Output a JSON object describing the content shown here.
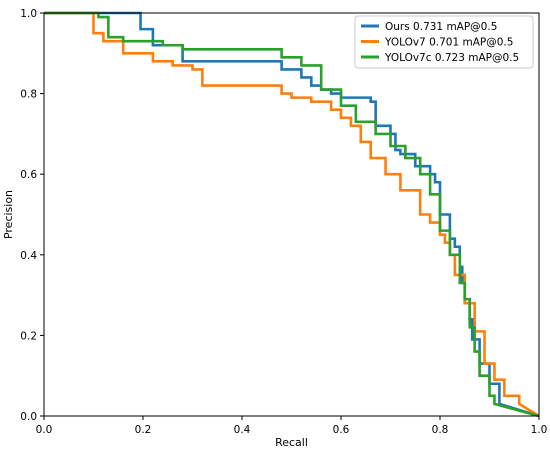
{
  "chart_data": {
    "type": "line",
    "xlabel": "Recall",
    "ylabel": "Precision",
    "xlim": [
      0.0,
      1.0
    ],
    "ylim": [
      0.0,
      1.0
    ],
    "xticks": [
      "0.0",
      "0.2",
      "0.4",
      "0.6",
      "0.8",
      "1.0"
    ],
    "yticks": [
      "0.0",
      "0.2",
      "0.4",
      "0.6",
      "0.8",
      "1.0"
    ],
    "grid": false,
    "legend_position": "top-right",
    "series": [
      {
        "name": "Ours 0.731 mAP@0.5",
        "color": "#1f77b4",
        "x": [
          0.0,
          0.195,
          0.195,
          0.22,
          0.22,
          0.28,
          0.28,
          0.48,
          0.48,
          0.52,
          0.52,
          0.54,
          0.54,
          0.56,
          0.56,
          0.58,
          0.58,
          0.6,
          0.6,
          0.66,
          0.66,
          0.67,
          0.67,
          0.7,
          0.7,
          0.71,
          0.71,
          0.72,
          0.72,
          0.75,
          0.75,
          0.78,
          0.78,
          0.79,
          0.79,
          0.8,
          0.8,
          0.82,
          0.82,
          0.83,
          0.83,
          0.84,
          0.84,
          0.845,
          0.845,
          0.85,
          0.85,
          0.86,
          0.86,
          0.865,
          0.865,
          0.88,
          0.88,
          0.9,
          0.9,
          0.92,
          0.92,
          1.0
        ],
        "y": [
          1.0,
          1.0,
          0.96,
          0.96,
          0.92,
          0.92,
          0.88,
          0.88,
          0.86,
          0.86,
          0.84,
          0.84,
          0.82,
          0.82,
          0.81,
          0.81,
          0.8,
          0.8,
          0.79,
          0.79,
          0.78,
          0.78,
          0.72,
          0.72,
          0.7,
          0.7,
          0.66,
          0.66,
          0.65,
          0.65,
          0.62,
          0.62,
          0.6,
          0.6,
          0.58,
          0.58,
          0.5,
          0.5,
          0.44,
          0.44,
          0.42,
          0.42,
          0.37,
          0.37,
          0.33,
          0.33,
          0.28,
          0.28,
          0.24,
          0.24,
          0.19,
          0.19,
          0.13,
          0.13,
          0.08,
          0.08,
          0.03,
          0.0
        ]
      },
      {
        "name": "YOLOv7 0.701 mAP@0.5",
        "color": "#ff7f0e",
        "x": [
          0.0,
          0.1,
          0.1,
          0.12,
          0.12,
          0.16,
          0.16,
          0.22,
          0.22,
          0.26,
          0.26,
          0.3,
          0.3,
          0.32,
          0.32,
          0.48,
          0.48,
          0.5,
          0.5,
          0.54,
          0.54,
          0.58,
          0.58,
          0.6,
          0.6,
          0.62,
          0.62,
          0.64,
          0.64,
          0.66,
          0.66,
          0.69,
          0.69,
          0.72,
          0.72,
          0.76,
          0.76,
          0.78,
          0.78,
          0.8,
          0.8,
          0.81,
          0.81,
          0.82,
          0.82,
          0.83,
          0.83,
          0.85,
          0.85,
          0.87,
          0.87,
          0.89,
          0.89,
          0.91,
          0.91,
          0.93,
          0.93,
          0.96,
          0.96,
          1.0
        ],
        "y": [
          1.0,
          1.0,
          0.95,
          0.95,
          0.93,
          0.93,
          0.9,
          0.9,
          0.88,
          0.88,
          0.87,
          0.87,
          0.86,
          0.86,
          0.82,
          0.82,
          0.8,
          0.8,
          0.79,
          0.79,
          0.78,
          0.78,
          0.76,
          0.76,
          0.74,
          0.74,
          0.72,
          0.72,
          0.68,
          0.68,
          0.64,
          0.64,
          0.6,
          0.6,
          0.56,
          0.56,
          0.5,
          0.5,
          0.48,
          0.48,
          0.45,
          0.45,
          0.43,
          0.43,
          0.4,
          0.4,
          0.35,
          0.35,
          0.28,
          0.28,
          0.21,
          0.21,
          0.13,
          0.13,
          0.09,
          0.09,
          0.05,
          0.05,
          0.03,
          0.0
        ]
      },
      {
        "name": "YOLOv7c 0.723 mAP@0.5",
        "color": "#2ca02c",
        "x": [
          0.0,
          0.11,
          0.11,
          0.13,
          0.13,
          0.16,
          0.16,
          0.24,
          0.24,
          0.28,
          0.28,
          0.48,
          0.48,
          0.52,
          0.52,
          0.56,
          0.56,
          0.6,
          0.6,
          0.63,
          0.63,
          0.67,
          0.67,
          0.7,
          0.7,
          0.73,
          0.73,
          0.76,
          0.76,
          0.78,
          0.78,
          0.8,
          0.8,
          0.82,
          0.82,
          0.84,
          0.84,
          0.85,
          0.85,
          0.86,
          0.86,
          0.87,
          0.87,
          0.88,
          0.88,
          0.9,
          0.9,
          0.91,
          0.91,
          1.0
        ],
        "y": [
          1.0,
          1.0,
          0.99,
          0.99,
          0.94,
          0.94,
          0.93,
          0.93,
          0.92,
          0.92,
          0.91,
          0.91,
          0.89,
          0.89,
          0.87,
          0.87,
          0.81,
          0.81,
          0.77,
          0.77,
          0.73,
          0.73,
          0.7,
          0.7,
          0.67,
          0.67,
          0.64,
          0.64,
          0.6,
          0.6,
          0.55,
          0.55,
          0.46,
          0.46,
          0.4,
          0.4,
          0.33,
          0.33,
          0.29,
          0.29,
          0.22,
          0.22,
          0.16,
          0.16,
          0.1,
          0.1,
          0.05,
          0.05,
          0.03,
          0.0
        ]
      }
    ]
  }
}
